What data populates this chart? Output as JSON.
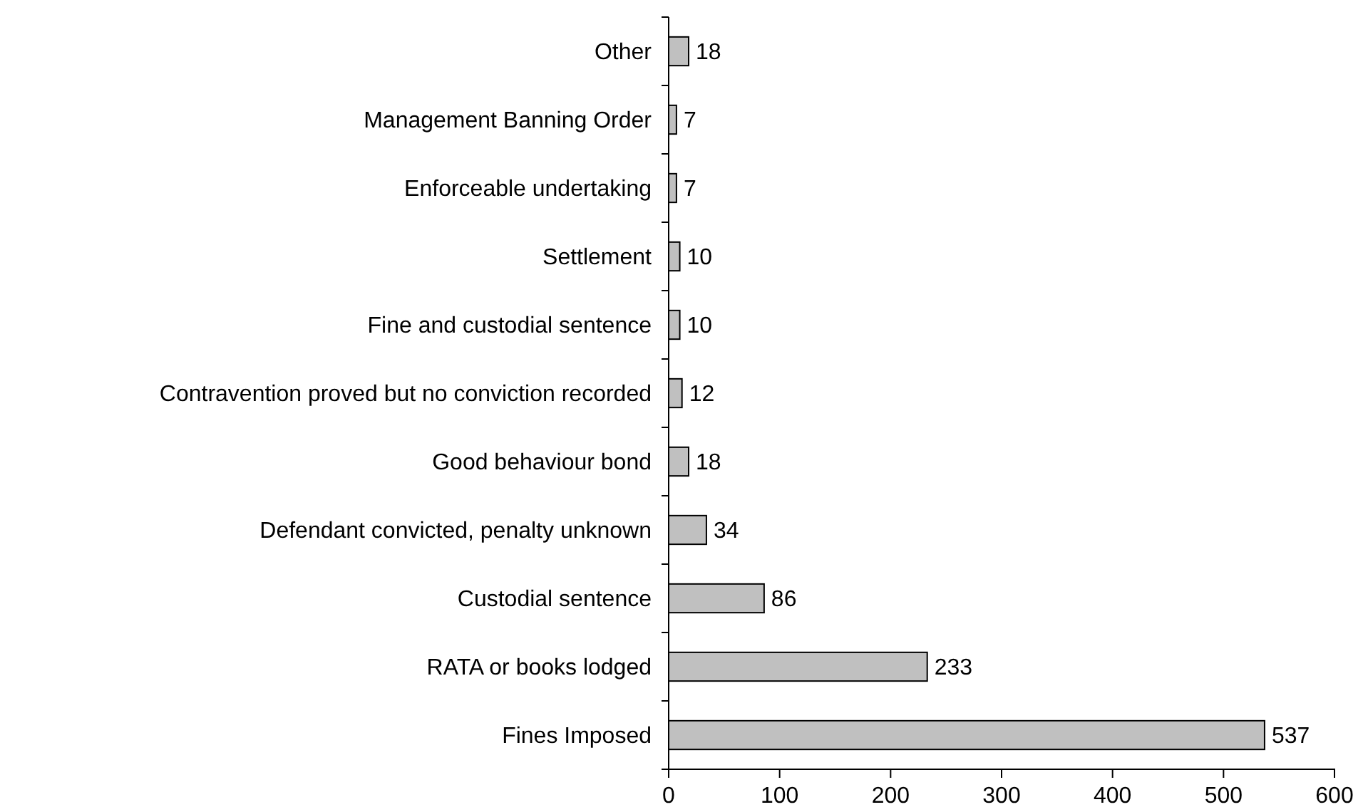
{
  "chart_data": {
    "type": "bar",
    "orientation": "horizontal",
    "categories": [
      "Other",
      "Management Banning Order",
      "Enforceable undertaking",
      "Settlement",
      "Fine and custodial sentence",
      "Contravention proved but no conviction recorded",
      "Good behaviour bond",
      "Defendant convicted, penalty unknown",
      "Custodial sentence",
      "RATA or books lodged",
      "Fines Imposed"
    ],
    "values": [
      18,
      7,
      7,
      10,
      10,
      12,
      18,
      34,
      86,
      233,
      537
    ],
    "color": "#c0c0c0",
    "xlim": [
      0,
      600
    ],
    "xticks": [
      0,
      100,
      200,
      300,
      400,
      500,
      600
    ],
    "data_labels": true
  }
}
